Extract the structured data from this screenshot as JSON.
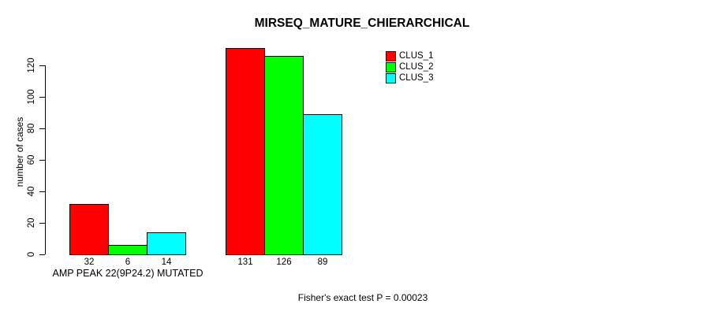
{
  "chart_data": {
    "type": "bar",
    "title": "MIRSEQ_MATURE_CHIERARCHICAL",
    "ylabel": "number of cases",
    "xlabel": "",
    "categories": [
      "AMP PEAK 22(9P24.2) MUTATED",
      ""
    ],
    "series": [
      {
        "name": "CLUS_1",
        "color": "#FF0000",
        "values": [
          32,
          131
        ]
      },
      {
        "name": "CLUS_2",
        "color": "#00FF00",
        "values": [
          6,
          126
        ]
      },
      {
        "name": "CLUS_3",
        "color": "#00FFFF",
        "values": [
          14,
          89
        ]
      }
    ],
    "ylim": [
      0,
      120
    ],
    "yticks": [
      0,
      20,
      40,
      60,
      80,
      100,
      120
    ],
    "bar_value_labels_shown": true,
    "legend_position": "top-right",
    "grid": false,
    "annotation": "Fisher's exact test P = 0.00023",
    "axis_color": "#000000",
    "background_color": "#FFFFFF"
  }
}
